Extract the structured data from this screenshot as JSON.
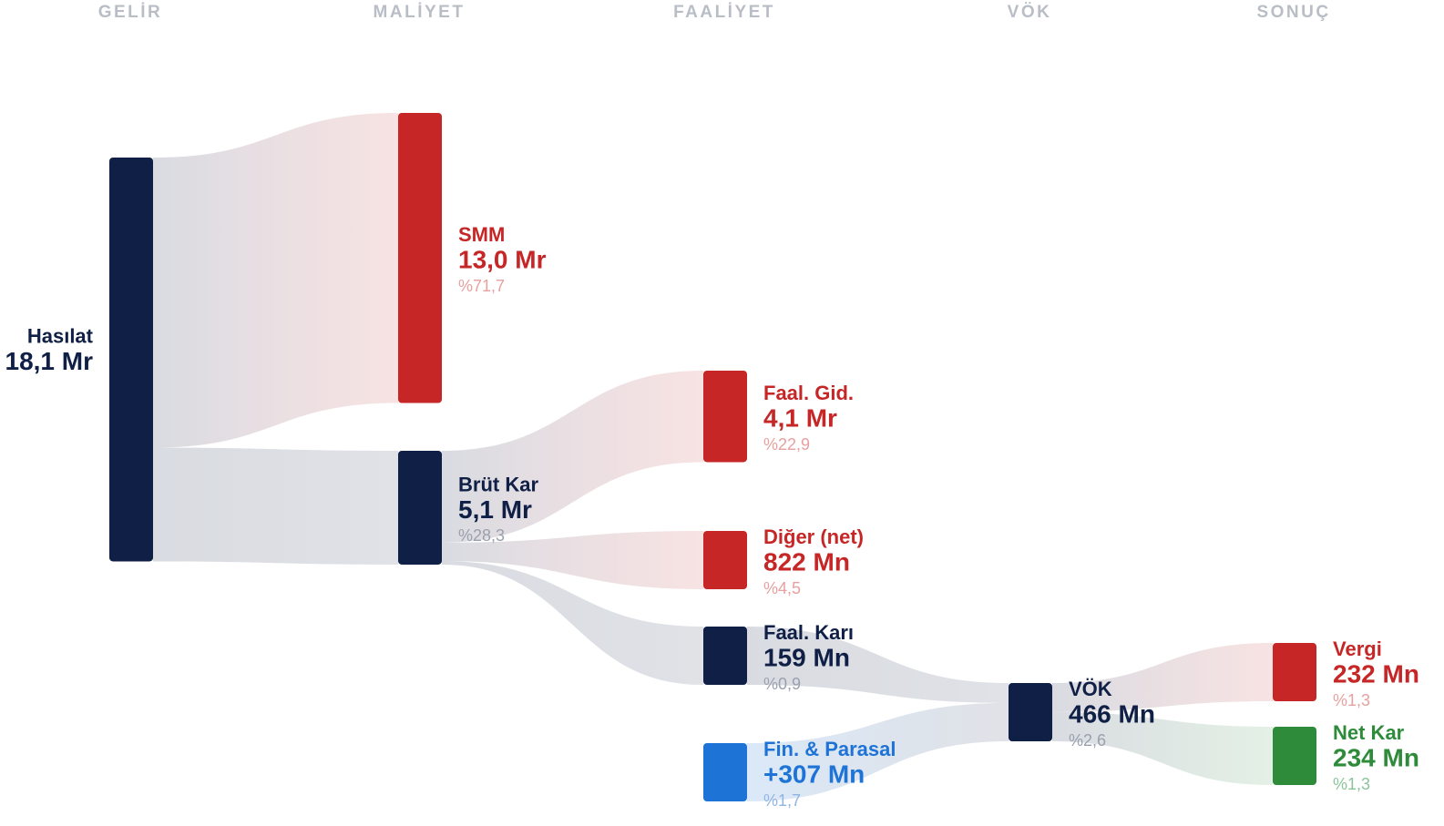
{
  "chart_data": {
    "type": "sankey",
    "columns": [
      {
        "title": "GELİR",
        "nodes": [
          {
            "name": "Hasılat",
            "value": 18100,
            "value_label": "18,1 Mr",
            "color": "#0f1f45"
          }
        ]
      },
      {
        "title": "MALİYET",
        "nodes": [
          {
            "name": "SMM",
            "value": 13000,
            "value_label": "13,0 Mr",
            "color": "#c62626",
            "share": {
              "value": 71.7,
              "label": "%71,7"
            }
          },
          {
            "name": "Brüt Kar",
            "value": 5100,
            "value_label": "5,1 Mr",
            "color": "#0f1f45",
            "share": {
              "value": 28.3,
              "label": "%28,3"
            }
          }
        ]
      },
      {
        "title": "FAALİYET",
        "nodes": [
          {
            "name": "Faal. Gid.",
            "value": 4100,
            "value_label": "4,1 Mr",
            "color": "#c62626",
            "share": {
              "value": 22.9,
              "label": "%22,9"
            }
          },
          {
            "name": "Diğer (net)",
            "value": 822,
            "value_label": "822 Mn",
            "color": "#c62626",
            "share": {
              "value": 4.5,
              "label": "%4,5"
            }
          },
          {
            "name": "Faal. Karı",
            "value": 159,
            "value_label": "159 Mn",
            "color": "#0f1f45",
            "share": {
              "value": 0.9,
              "label": "%0,9"
            }
          },
          {
            "name": "Fin. & Parasal",
            "value": 307,
            "value_label": "+307 Mn",
            "color": "#1e74d6",
            "share": {
              "value": 1.7,
              "label": "%1,7"
            }
          }
        ]
      },
      {
        "title": "VÖK",
        "nodes": [
          {
            "name": "VÖK",
            "value": 466,
            "value_label": "466 Mn",
            "color": "#0f1f45",
            "share": {
              "value": 2.6,
              "label": "%2,6"
            }
          }
        ]
      },
      {
        "title": "SONUÇ",
        "nodes": [
          {
            "name": "Vergi",
            "value": 232,
            "value_label": "232 Mn",
            "color": "#c62626",
            "share": {
              "value": 1.3,
              "label": "%1,3"
            }
          },
          {
            "name": "Net Kar",
            "value": 234,
            "value_label": "234 Mn",
            "color": "#2e8b3a",
            "share": {
              "value": 1.3,
              "label": "%1,3"
            }
          }
        ]
      }
    ],
    "links": [
      {
        "from": "Hasılat",
        "to": "SMM"
      },
      {
        "from": "Hasılat",
        "to": "Brüt Kar"
      },
      {
        "from": "Brüt Kar",
        "to": "Faal. Gid."
      },
      {
        "from": "Brüt Kar",
        "to": "Diğer (net)"
      },
      {
        "from": "Brüt Kar",
        "to": "Faal. Karı"
      },
      {
        "from": "Faal. Karı",
        "to": "VÖK"
      },
      {
        "from": "Fin. & Parasal",
        "to": "VÖK"
      },
      {
        "from": "VÖK",
        "to": "Vergi"
      },
      {
        "from": "VÖK",
        "to": "Net Kar"
      }
    ]
  }
}
